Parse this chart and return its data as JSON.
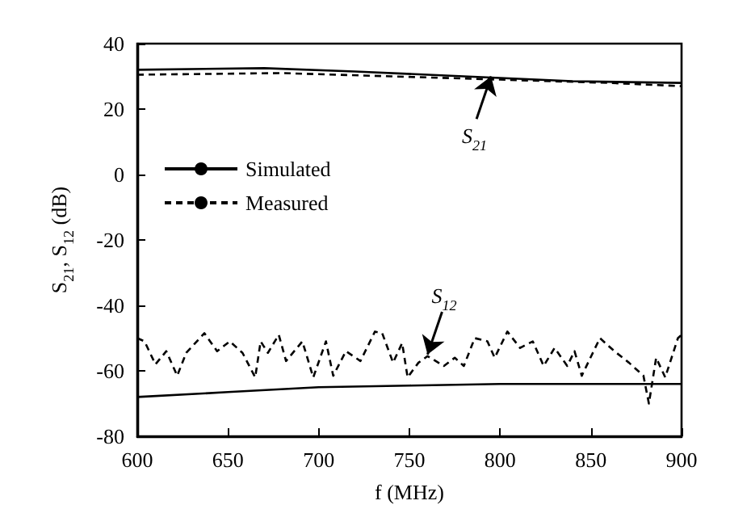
{
  "chart_data": {
    "type": "line",
    "xlabel": "f (MHz)",
    "ylabel": "S$_{21}$, S$_{12}$ (dB)",
    "xlim": [
      600,
      900
    ],
    "xticks": [
      600,
      650,
      700,
      750,
      800,
      850,
      900
    ],
    "ylim": [
      -80,
      40
    ],
    "yticks": [
      -80,
      -60,
      -40,
      -20,
      0,
      20,
      40
    ],
    "grid": false,
    "legend": "top left",
    "marker": "none",
    "annotations": [
      {
        "text": "S$_{21}$",
        "x": 795,
        "y": 30
      },
      {
        "text": "S$_{12}$",
        "x": 760,
        "y": -55
      }
    ],
    "series": [
      {
        "name": "Simulated",
        "color": "#000000",
        "line_style": "solid",
        "x": [
          600,
          670,
          720,
          780,
          840,
          900
        ],
        "values": [
          32,
          32.5,
          31.5,
          30,
          28.5,
          28
        ]
      },
      {
        "name": "Measured",
        "color": "#000000",
        "line_style": "dashed",
        "x": [
          600,
          680,
          740,
          800,
          860,
          900
        ],
        "values": [
          30.5,
          31,
          30,
          29,
          28,
          27
        ]
      },
      {
        "color": "#000000",
        "line_style": "solid",
        "x": [
          600,
          650,
          700,
          750,
          800,
          850,
          900
        ],
        "values": [
          -68,
          -66.5,
          -65,
          -64.5,
          -64,
          -64,
          -64
        ]
      },
      {
        "color": "#000000",
        "line_style": "dashed",
        "x": [
          600,
          604,
          610,
          616,
          622,
          627,
          637,
          644,
          651,
          658,
          665,
          668,
          672,
          678,
          682,
          691,
          697,
          704,
          708,
          715,
          723,
          731,
          735,
          741,
          746,
          749,
          755,
          760,
          769,
          775,
          780,
          786,
          793,
          797,
          804,
          811,
          818,
          824,
          830,
          837,
          841,
          845,
          855,
          863,
          871,
          879,
          882,
          886,
          891,
          898,
          900
        ],
        "values": [
          -50,
          -51,
          -58,
          -54,
          -61.5,
          -54.5,
          -48.5,
          -54,
          -51,
          -54.5,
          -62,
          -51,
          -54.5,
          -49,
          -57,
          -51,
          -62,
          -51,
          -61.5,
          -54,
          -57,
          -48,
          -48.5,
          -57.5,
          -51.5,
          -62,
          -57.5,
          -55.5,
          -58.5,
          -56,
          -58.5,
          -50,
          -51,
          -56,
          -48,
          -53,
          -51,
          -58.5,
          -53,
          -58.5,
          -54,
          -61.5,
          -50,
          -54,
          -57.5,
          -61.5,
          -70,
          -56,
          -62,
          -50,
          -49
        ]
      }
    ]
  }
}
